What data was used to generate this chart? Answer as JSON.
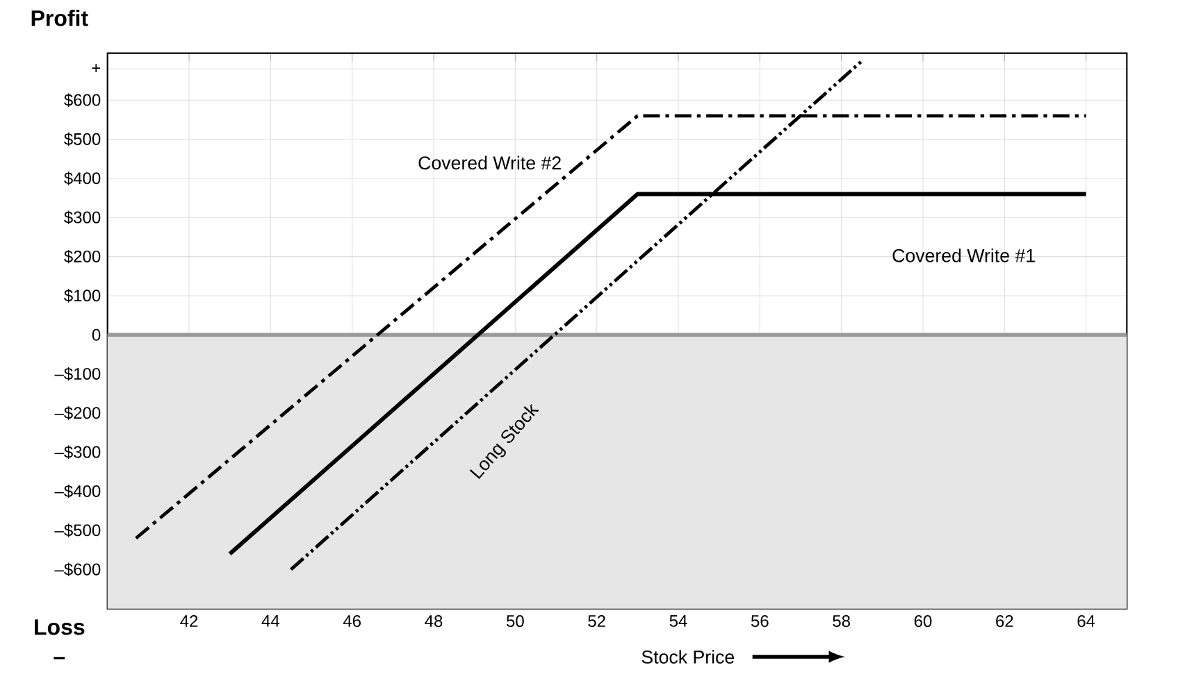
{
  "chart_data": {
    "type": "line",
    "xlabel": "Stock Price",
    "ylabel": "Profit",
    "annotations": [
      "Loss",
      "–"
    ],
    "xlim": [
      40,
      65
    ],
    "ylim": [
      -700,
      720
    ],
    "xticks": [
      42,
      44,
      46,
      48,
      50,
      52,
      54,
      56,
      58,
      60,
      62,
      64
    ],
    "yticks": [
      {
        "value": -600,
        "label": "–$600"
      },
      {
        "value": -500,
        "label": "–$500"
      },
      {
        "value": -400,
        "label": "–$400"
      },
      {
        "value": -300,
        "label": "–$300"
      },
      {
        "value": -200,
        "label": "–$200"
      },
      {
        "value": -100,
        "label": "–$100"
      },
      {
        "value": 0,
        "label": "0"
      },
      {
        "value": 100,
        "label": "$100"
      },
      {
        "value": 200,
        "label": "$200"
      },
      {
        "value": 300,
        "label": "$300"
      },
      {
        "value": 400,
        "label": "$400"
      },
      {
        "value": 500,
        "label": "$500"
      },
      {
        "value": 600,
        "label": "$600"
      },
      {
        "value": 680,
        "label": "+"
      }
    ],
    "grid": true,
    "marker": "none",
    "bands": [
      {
        "axis": "y",
        "from": -700,
        "to": 0,
        "color": "#e6e6e6"
      }
    ],
    "ref_lines": [
      {
        "axis": "y",
        "value": 0,
        "color": "#999999"
      }
    ],
    "series": [
      {
        "name": "Covered Write #1",
        "color": "#000000",
        "line_style": "solid",
        "x": [
          43,
          53,
          64
        ],
        "values": [
          -560,
          360,
          360
        ]
      },
      {
        "name": "Covered Write #2",
        "color": "#000000",
        "line_style": "dashed",
        "x": [
          40.7,
          53,
          64
        ],
        "values": [
          -520,
          560,
          560
        ]
      },
      {
        "name": "Long Stock",
        "color": "#000000",
        "line_style": "dotted",
        "x": [
          44.5,
          58.5
        ],
        "values": [
          -600,
          700
        ]
      }
    ]
  }
}
